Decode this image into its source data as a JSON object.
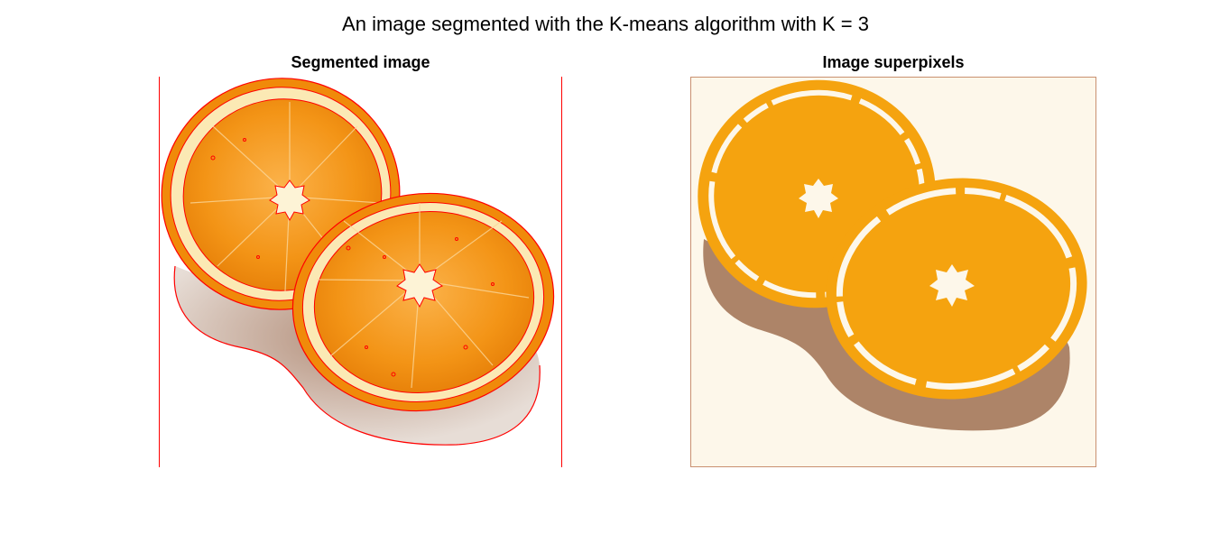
{
  "figure": {
    "title": "An image segmented with the K-means algorithm with K = 3"
  },
  "panels": [
    {
      "title": "Segmented image"
    },
    {
      "title": "Image superpixels"
    }
  ],
  "colors": {
    "boundary": "#ff0000",
    "cluster_orange": "#f5a30f",
    "cluster_shadow": "#ad8468",
    "cluster_background": "#fdf7ea",
    "orange_flesh": "#f59a1c",
    "orange_pith": "#fbeec0"
  }
}
